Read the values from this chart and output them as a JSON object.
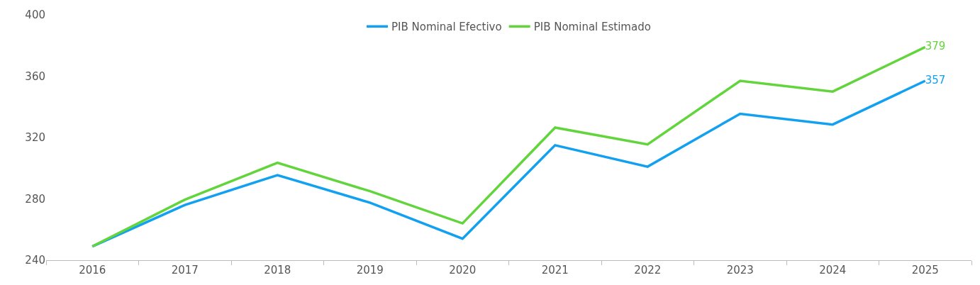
{
  "chart_data": {
    "type": "line",
    "categories": [
      "2016",
      "2017",
      "2018",
      "2019",
      "2020",
      "2021",
      "2022",
      "2023",
      "2024",
      "2025"
    ],
    "series": [
      {
        "name": "PIB Nominal Efectivo",
        "color": "#12a0f0",
        "values": [
          249,
          276,
          295.5,
          277.5,
          254,
          315,
          301,
          335.5,
          328.5,
          357
        ],
        "value_labels": [
          null,
          null,
          null,
          null,
          null,
          null,
          null,
          null,
          null,
          "357"
        ]
      },
      {
        "name": "PIB Nominal Estimado",
        "color": "#62d43c",
        "values": [
          249,
          279.5,
          303.5,
          285,
          264,
          326.5,
          315.5,
          357,
          350,
          379
        ],
        "value_labels": [
          null,
          null,
          null,
          null,
          null,
          null,
          null,
          null,
          null,
          "379"
        ]
      }
    ],
    "ylim": [
      240,
      400
    ],
    "yticks": [
      240,
      280,
      320,
      360,
      400
    ],
    "grid": false,
    "legend": "top",
    "marker": "none",
    "line_style": "solid"
  }
}
